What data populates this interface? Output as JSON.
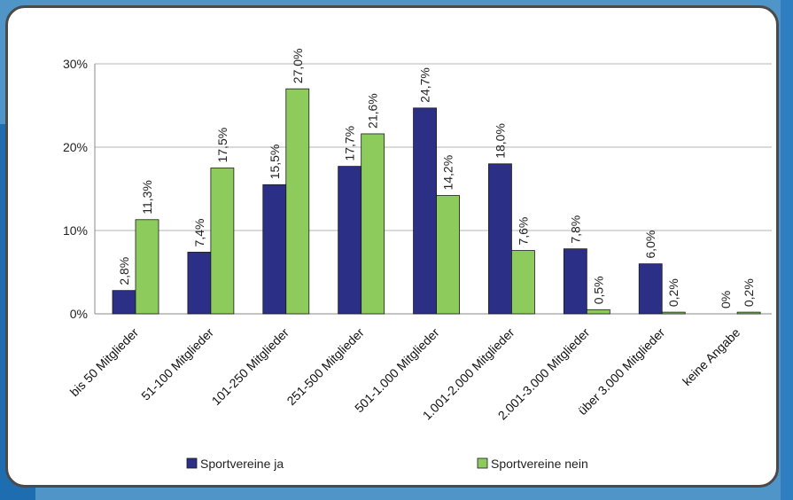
{
  "chart_data": {
    "type": "bar",
    "title": "",
    "xlabel": "",
    "ylabel": "",
    "ylim": [
      0,
      30
    ],
    "yticks": [
      "0%",
      "10%",
      "20%",
      "30%"
    ],
    "grid": true,
    "legend_position": "bottom",
    "categories": [
      "bis 50 Mitglieder",
      "51-100 Mitglieder",
      "101-250 Mitglieder",
      "251-500 Mitglieder",
      "501-1.000 Mitglieder",
      "1.001-2.000 Mitglieder",
      "2.001-3.000 Mitglieder",
      "über 3.000 Mitglieder",
      "keine Angabe"
    ],
    "series": [
      {
        "name": "Sportvereine ja",
        "color": "#2b2f86",
        "values": [
          2.8,
          7.4,
          15.5,
          17.7,
          24.7,
          18.0,
          7.8,
          6.0,
          0
        ],
        "labels": [
          "2,8%",
          "7,4%",
          "15,5%",
          "17,7%",
          "24,7%",
          "18,0%",
          "7,8%",
          "6,0%",
          "0%"
        ]
      },
      {
        "name": "Sportvereine nein",
        "color": "#8dcb5c",
        "values": [
          11.3,
          17.5,
          27.0,
          21.6,
          14.2,
          7.6,
          0.5,
          0.2,
          0.2
        ],
        "labels": [
          "11,3%",
          "17,5%",
          "27,0%",
          "21,6%",
          "14,2%",
          "7,6%",
          "0,5%",
          "0,2%",
          "0,2%"
        ]
      }
    ]
  }
}
